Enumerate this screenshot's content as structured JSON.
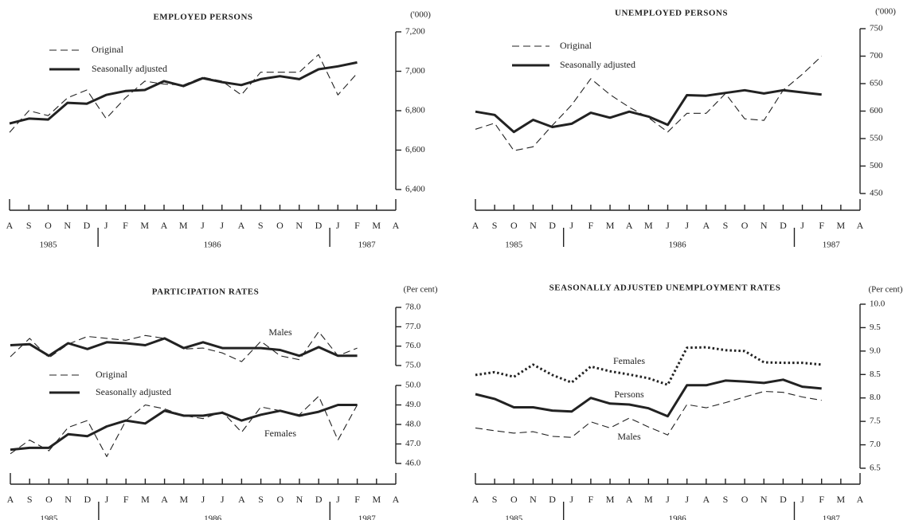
{
  "chart_data": [
    {
      "type": "line",
      "title": "EMPLOYED PERSONS",
      "unit_label": "('000)",
      "categories": [
        "A",
        "S",
        "O",
        "N",
        "D",
        "J",
        "F",
        "M",
        "A",
        "M",
        "J",
        "J",
        "A",
        "S",
        "O",
        "N",
        "D",
        "J",
        "F",
        "M",
        "A"
      ],
      "years": [
        "1985",
        "1986",
        "1987"
      ],
      "ylim": [
        6400,
        7200
      ],
      "yticks": [
        {
          "value": 6400,
          "label": "6,400"
        },
        {
          "value": 6600,
          "label": "6,600"
        },
        {
          "value": 6800,
          "label": "6,800"
        },
        {
          "value": 7000,
          "label": "7,000"
        },
        {
          "value": 7200,
          "label": "7,200"
        }
      ],
      "legend": true,
      "series": [
        {
          "name": "Original",
          "style": "dashed",
          "color": "#222",
          "values": [
            6690,
            6800,
            6775,
            6865,
            6905,
            6760,
            6865,
            6950,
            6935,
            6930,
            6970,
            6950,
            6880,
            6995,
            6995,
            6995,
            7085,
            6880,
            6990,
            null,
            null
          ]
        },
        {
          "name": "Seasonally adjusted",
          "style": "solid",
          "color": "#222",
          "values": [
            6735,
            6760,
            6755,
            6840,
            6835,
            6880,
            6900,
            6905,
            6950,
            6925,
            6965,
            6945,
            6930,
            6960,
            6975,
            6960,
            7010,
            7025,
            7045,
            null,
            null
          ]
        }
      ]
    },
    {
      "type": "line",
      "title": "UNEMPLOYED PERSONS",
      "unit_label": "('000)",
      "categories": [
        "A",
        "S",
        "O",
        "N",
        "D",
        "J",
        "F",
        "M",
        "A",
        "M",
        "J",
        "J",
        "A",
        "S",
        "O",
        "N",
        "D",
        "J",
        "F",
        "M",
        "A"
      ],
      "years": [
        "1985",
        "1986",
        "1987"
      ],
      "ylim": [
        450,
        750
      ],
      "yticks": [
        450,
        500,
        550,
        600,
        650,
        700,
        750
      ],
      "legend": true,
      "series": [
        {
          "name": "Original",
          "style": "dashed",
          "color": "#222",
          "values": [
            567,
            578,
            528,
            535,
            574,
            611,
            659,
            630,
            607,
            588,
            562,
            596,
            596,
            632,
            586,
            583,
            638,
            667,
            700,
            null,
            null
          ]
        },
        {
          "name": "Seasonally adjusted",
          "style": "solid",
          "color": "#222",
          "values": [
            599,
            593,
            562,
            584,
            571,
            577,
            597,
            588,
            599,
            590,
            575,
            629,
            628,
            633,
            638,
            632,
            638,
            634,
            630,
            null,
            null
          ]
        }
      ]
    },
    {
      "type": "line",
      "title": "PARTICIPATION RATES",
      "unit_label": "(Per cent)",
      "categories": [
        "A",
        "S",
        "O",
        "N",
        "D",
        "J",
        "F",
        "M",
        "A",
        "M",
        "J",
        "J",
        "A",
        "S",
        "O",
        "N",
        "D",
        "J",
        "F",
        "M",
        "A"
      ],
      "years": [
        "1985",
        "1986",
        "1987"
      ],
      "ylim": [
        75,
        78
      ],
      "yticks": [
        {
          "value": 75,
          "label": "75.0"
        },
        {
          "value": 76,
          "label": "76.0"
        },
        {
          "value": 77,
          "label": "77.0"
        },
        {
          "value": 78,
          "label": "78.0"
        }
      ],
      "y2lim": [
        46,
        50
      ],
      "y2ticks": [
        {
          "value": 46,
          "label": "46.0"
        },
        {
          "value": 47,
          "label": "47.0"
        },
        {
          "value": 48,
          "label": "48.0"
        },
        {
          "value": 49,
          "label": "49.0"
        },
        {
          "value": 50,
          "label": "50.0"
        }
      ],
      "legend": true,
      "annotations": [
        "Males",
        "Females"
      ],
      "series": [
        {
          "name": "Original",
          "style": "dashed",
          "color": "#222",
          "values": [
            75.45,
            76.4,
            75.4,
            76.1,
            76.5,
            76.4,
            76.3,
            76.55,
            76.4,
            75.85,
            75.9,
            75.65,
            75.2,
            76.25,
            75.5,
            75.3,
            76.75,
            75.5,
            75.9,
            null,
            null
          ]
        },
        {
          "name": "Seasonally adjusted",
          "style": "solid",
          "color": "#222",
          "values": [
            76.05,
            76.1,
            75.5,
            76.15,
            75.85,
            76.2,
            76.15,
            76.05,
            76.4,
            75.9,
            76.2,
            75.9,
            75.9,
            75.9,
            75.8,
            75.5,
            75.95,
            75.5,
            75.5,
            null,
            null
          ]
        },
        {
          "style": "dashed",
          "color": "#222",
          "axis": "y2",
          "values": [
            46.5,
            47.2,
            46.65,
            47.85,
            48.2,
            46.35,
            48.2,
            49,
            48.8,
            48.45,
            48.3,
            48.65,
            47.6,
            48.9,
            48.7,
            48.5,
            49.45,
            47.2,
            49,
            null,
            null
          ]
        },
        {
          "style": "solid",
          "color": "#222",
          "axis": "y2",
          "values": [
            46.7,
            46.8,
            46.8,
            47.5,
            47.4,
            47.9,
            48.2,
            48.05,
            48.7,
            48.45,
            48.45,
            48.6,
            48.2,
            48.5,
            48.7,
            48.45,
            48.65,
            49,
            49,
            null,
            null
          ]
        }
      ]
    },
    {
      "type": "line",
      "title": "SEASONALLY ADJUSTED UNEMPLOYMENT RATES",
      "unit_label": "(Per cent)",
      "categories": [
        "A",
        "S",
        "O",
        "N",
        "D",
        "J",
        "F",
        "M",
        "A",
        "M",
        "J",
        "J",
        "A",
        "S",
        "O",
        "N",
        "D",
        "J",
        "F",
        "M",
        "A"
      ],
      "years": [
        "1985",
        "1986",
        "1987"
      ],
      "ylim": [
        6.5,
        10
      ],
      "yticks": [
        6.5,
        {
          "value": 7,
          "label": "7.0"
        },
        7.5,
        {
          "value": 8,
          "label": "8.0"
        },
        8.5,
        {
          "value": 9,
          "label": "9.0"
        },
        9.5,
        {
          "value": 10,
          "label": "10.0"
        }
      ],
      "legend": false,
      "series": [
        {
          "name": "Females",
          "style": "dotted",
          "color": "#222",
          "values": [
            8.49,
            8.55,
            8.45,
            8.71,
            8.49,
            8.33,
            8.67,
            8.57,
            8.5,
            8.42,
            8.28,
            9.07,
            9.08,
            9.02,
            9,
            8.76,
            8.75,
            8.75,
            8.71,
            null,
            null
          ]
        },
        {
          "name": "Persons",
          "style": "solid",
          "color": "#222",
          "values": [
            8.08,
            7.98,
            7.8,
            7.8,
            7.73,
            7.71,
            8,
            7.88,
            7.86,
            7.78,
            7.61,
            8.27,
            8.27,
            8.37,
            8.35,
            8.32,
            8.39,
            8.24,
            8.2,
            null,
            null
          ]
        },
        {
          "name": "Males",
          "style": "dashed",
          "color": "#222",
          "values": [
            7.36,
            7.3,
            7.25,
            7.28,
            7.18,
            7.16,
            7.49,
            7.36,
            7.57,
            7.38,
            7.21,
            7.86,
            7.79,
            7.9,
            8.02,
            8.14,
            8.12,
            8.02,
            7.95,
            null,
            null
          ]
        }
      ]
    }
  ]
}
